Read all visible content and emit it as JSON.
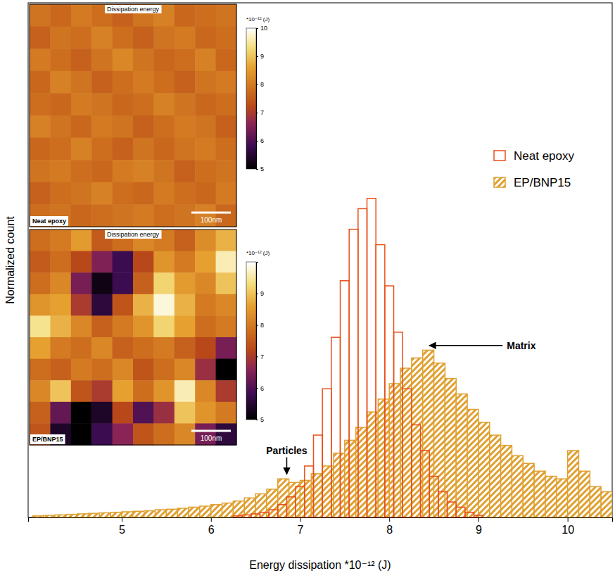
{
  "chart_data": [
    {
      "type": "histogram",
      "xlabel": "Energy dissipation *10⁻¹² (J)",
      "ylabel": "Normalized count",
      "xlim": [
        3.95,
        10.5
      ],
      "xticks": [
        5,
        6,
        7,
        8,
        9,
        10
      ],
      "ylim": [
        0,
        100
      ],
      "tick_labels": "x",
      "legend": "upper right",
      "series": [
        {
          "name": "Neat epoxy",
          "color": "#e8501a",
          "bins": [
            6.25,
            6.35,
            6.45,
            6.55,
            6.65,
            6.75,
            6.85,
            6.95,
            7.05,
            7.15,
            7.25,
            7.35,
            7.45,
            7.55,
            7.65,
            7.75,
            7.85,
            7.95,
            8.05,
            8.15,
            8.25,
            8.35,
            8.45,
            8.55,
            8.65,
            8.75,
            8.85,
            8.95,
            9.05
          ],
          "values": [
            0.3,
            0.5,
            0.7,
            1,
            1.5,
            2.5,
            4,
            6,
            10,
            16,
            25,
            35,
            46,
            56,
            60,
            62,
            53,
            45,
            36,
            25,
            18,
            13,
            8,
            5,
            3,
            2,
            1,
            0.4
          ]
        },
        {
          "name": "EP/BNP15",
          "color": "#e0a030",
          "bins": [
            4,
            4.125,
            4.25,
            4.375,
            4.5,
            4.625,
            4.75,
            4.875,
            5,
            5.125,
            5.25,
            5.375,
            5.5,
            5.625,
            5.75,
            5.875,
            6,
            6.125,
            6.25,
            6.375,
            6.5,
            6.625,
            6.75,
            6.875,
            7,
            7.125,
            7.25,
            7.375,
            7.5,
            7.625,
            7.75,
            7.875,
            8,
            8.125,
            8.25,
            8.375,
            8.5,
            8.625,
            8.75,
            8.875,
            9,
            9.125,
            9.25,
            9.375,
            9.5,
            9.625,
            9.75,
            9.875,
            10,
            10.125,
            10.25,
            10.375,
            10.5
          ],
          "values": [
            0.3,
            0.4,
            0.5,
            0.6,
            0.7,
            0.8,
            0.9,
            1.0,
            1.1,
            1.2,
            1.3,
            1.5,
            1.6,
            1.8,
            2.0,
            2.2,
            2.5,
            2.8,
            3.2,
            3.8,
            4.6,
            5.5,
            7.5,
            6.8,
            7.2,
            8.5,
            10,
            12.5,
            15,
            17.5,
            20.5,
            23,
            26,
            29,
            31,
            32.5,
            30,
            27,
            24,
            21,
            18.5,
            16,
            14,
            12,
            10.5,
            9,
            8,
            7.5,
            13,
            9,
            6,
            5
          ]
        }
      ],
      "annotations": [
        {
          "text": "Particles",
          "x": 6.85,
          "y": 8
        },
        {
          "text": "Matrix",
          "x": 8.45,
          "y": 33
        }
      ]
    },
    {
      "type": "heatmap",
      "title": "Dissipation energy",
      "label": "Neat epoxy",
      "scale_bar": "100nm",
      "cells": [
        [
          7.9,
          7.7,
          8.0,
          7.8,
          7.6,
          7.9,
          8.1,
          7.7,
          7.8,
          7.9
        ],
        [
          7.6,
          7.9,
          7.8,
          8.1,
          7.8,
          7.6,
          7.9,
          8.0,
          7.7,
          7.8
        ],
        [
          8.0,
          7.8,
          7.6,
          7.9,
          8.2,
          7.9,
          7.7,
          7.8,
          8.1,
          7.7
        ],
        [
          7.7,
          8.1,
          7.9,
          7.6,
          7.8,
          8.0,
          7.8,
          7.6,
          7.9,
          8.0
        ],
        [
          7.8,
          7.7,
          8.0,
          7.9,
          7.7,
          7.8,
          8.1,
          7.9,
          7.7,
          7.8
        ],
        [
          8.1,
          7.9,
          7.7,
          8.0,
          7.9,
          7.6,
          7.8,
          8.0,
          7.9,
          7.6
        ],
        [
          7.7,
          7.8,
          8.1,
          7.8,
          7.6,
          7.9,
          7.7,
          7.9,
          8.0,
          7.8
        ],
        [
          7.9,
          8.0,
          7.8,
          7.7,
          8.0,
          8.1,
          7.9,
          7.6,
          7.8,
          7.9
        ],
        [
          7.6,
          7.8,
          7.9,
          8.1,
          7.8,
          7.7,
          8.0,
          7.8,
          7.7,
          8.0
        ],
        [
          7.8,
          7.9,
          7.7,
          7.8,
          7.9,
          8.0,
          7.8,
          7.9,
          8.1,
          7.7
        ]
      ],
      "colorbar": {
        "label": "*10⁻¹² (J)",
        "range": [
          5,
          10
        ],
        "ticks": [
          5,
          6,
          7,
          8,
          9,
          10
        ]
      }
    },
    {
      "type": "heatmap",
      "title": "Dissipation energy",
      "label": "EP/BNP15",
      "scale_bar": "100nm",
      "cells": [
        [
          7.8,
          8.0,
          8.5,
          7.5,
          7.8,
          8.2,
          8.0,
          7.6,
          8.3,
          8.8
        ],
        [
          7.5,
          7.8,
          7.2,
          6.5,
          5.8,
          7.2,
          8.4,
          8.0,
          8.6,
          9.6
        ],
        [
          7.8,
          8.2,
          6.4,
          5.2,
          5.8,
          7.6,
          9.2,
          8.5,
          8.2,
          9.0
        ],
        [
          8.4,
          8.6,
          7.0,
          5.6,
          7.4,
          8.8,
          9.8,
          8.8,
          8.0,
          8.2
        ],
        [
          9.4,
          8.8,
          8.2,
          7.6,
          8.0,
          8.4,
          9.2,
          8.6,
          7.8,
          8.0
        ],
        [
          8.6,
          8.0,
          7.8,
          8.2,
          7.6,
          7.8,
          8.0,
          7.6,
          7.2,
          6.4
        ],
        [
          7.8,
          7.6,
          8.0,
          7.8,
          8.2,
          7.4,
          7.8,
          8.2,
          6.8,
          5.0
        ],
        [
          8.2,
          9.0,
          7.4,
          7.0,
          8.6,
          7.8,
          8.4,
          9.6,
          8.2,
          7.0
        ],
        [
          7.6,
          6.2,
          5.0,
          5.4,
          7.2,
          6.0,
          6.8,
          9.0,
          8.4,
          8.0
        ],
        [
          7.4,
          5.4,
          5.0,
          5.8,
          6.6,
          7.4,
          7.8,
          8.2,
          6.4,
          5.6
        ]
      ],
      "colorbar": {
        "label": "*10⁻¹² (J)",
        "range": [
          5,
          10
        ],
        "ticks": [
          5,
          6,
          7,
          8,
          9
        ]
      }
    }
  ]
}
